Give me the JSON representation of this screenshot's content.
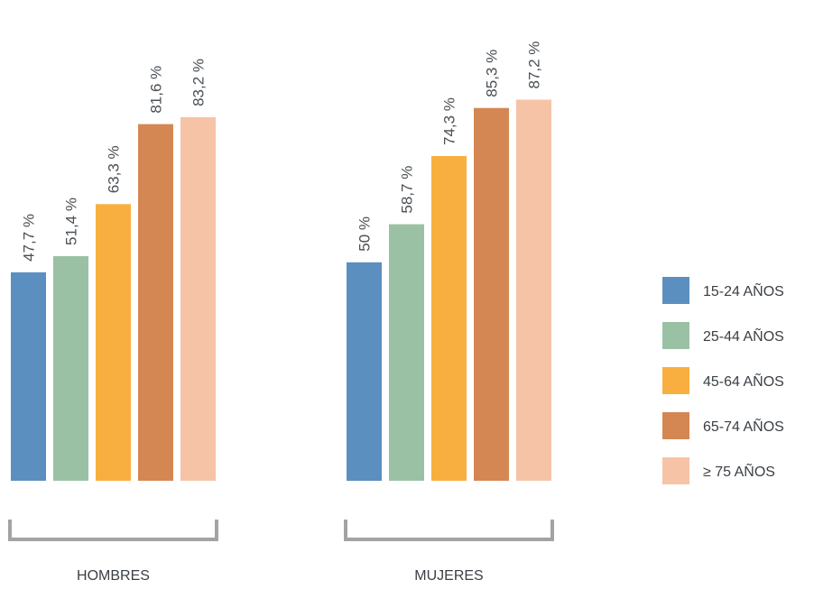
{
  "chart_data": {
    "type": "bar",
    "categories": [
      "HOMBRES",
      "MUJERES"
    ],
    "series": [
      {
        "name": "15-24  AÑOS",
        "values": [
          47.7,
          50
        ],
        "labels": [
          "47,7 %",
          "50 %"
        ],
        "color": "#5b8fc0"
      },
      {
        "name": "25-44  AÑOS",
        "values": [
          51.4,
          58.7
        ],
        "labels": [
          "51,4 %",
          "58,7 %"
        ],
        "color": "#9bc1a4"
      },
      {
        "name": "45-64  AÑOS",
        "values": [
          63.3,
          74.3
        ],
        "labels": [
          "63,3 %",
          "74,3 %"
        ],
        "color": "#f9af3f"
      },
      {
        "name": "65-74  AÑOS",
        "values": [
          81.6,
          85.3
        ],
        "labels": [
          "81,6 %",
          "85,3 %"
        ],
        "color": "#d48752"
      },
      {
        "name": "≥ 75  AÑOS",
        "values": [
          83.2,
          87.2
        ],
        "labels": [
          "83,2 %",
          "87,2 %"
        ],
        "color": "#f6c3a6"
      }
    ],
    "title": "",
    "xlabel": "",
    "ylabel": "",
    "ylim": [
      0,
      100
    ],
    "grid": false,
    "legend_position": "right",
    "bracket_color": "#a3a3a3"
  }
}
